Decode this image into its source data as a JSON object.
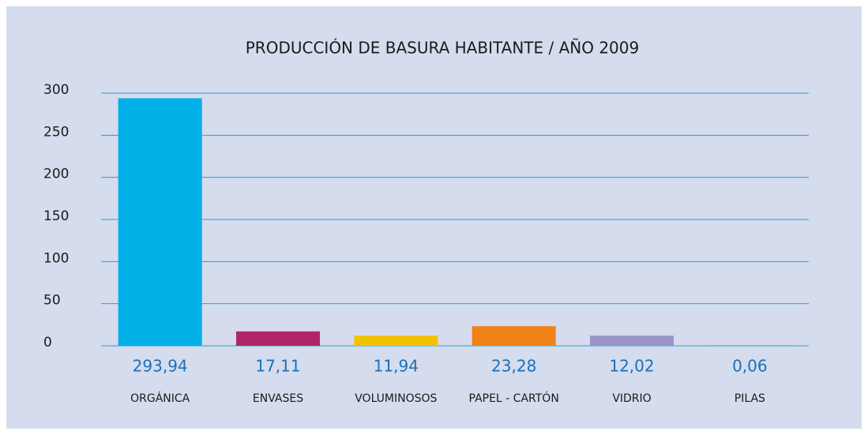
{
  "chart_data": {
    "type": "bar",
    "title": "PRODUCCIÓN DE BASURA HABITANTE / AÑO 2009",
    "categories": [
      "ORGÁNICA",
      "ENVASES",
      "VOLUMINOSOS",
      "PAPEL - CARTÓN",
      "VIDRIO",
      "PILAS"
    ],
    "values": [
      293.94,
      17.11,
      11.94,
      23.28,
      12.02,
      0.06
    ],
    "value_labels": [
      "293,94",
      "17,11",
      "11,94",
      "23,28",
      "12,02",
      "0,06"
    ],
    "colors": [
      "#00b0e6",
      "#b0256a",
      "#f2c200",
      "#f08217",
      "#9a93c8",
      "#e3262b"
    ],
    "ylim": [
      0,
      300
    ],
    "yticks": [
      0,
      50,
      100,
      150,
      200,
      250,
      300
    ],
    "grid": true
  }
}
